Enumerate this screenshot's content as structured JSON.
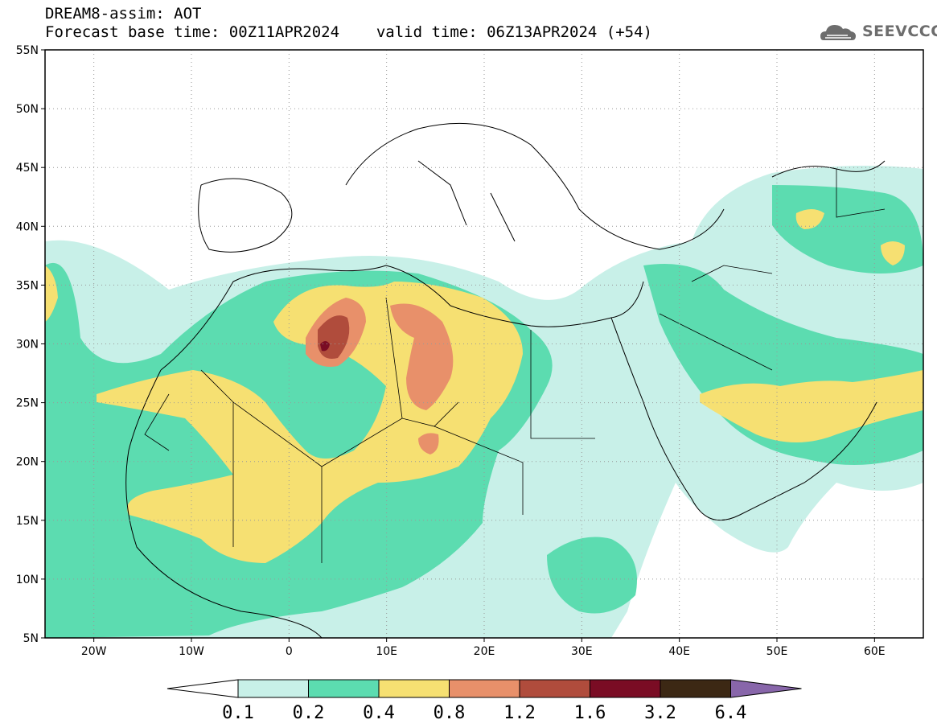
{
  "header": {
    "title_line1": "DREAM8-assim: AOT",
    "base_time_label": "Forecast base time: 00Z11APR2024",
    "valid_time_label": "valid time: 06Z13APR2024 (+54)",
    "logo_text": "SEEVCCC"
  },
  "map": {
    "lon_range": [
      -25,
      65
    ],
    "lat_range": [
      5,
      55
    ],
    "lon_ticks": [
      {
        "value": -20,
        "label": "20W"
      },
      {
        "value": -10,
        "label": "10W"
      },
      {
        "value": 0,
        "label": "0"
      },
      {
        "value": 10,
        "label": "10E"
      },
      {
        "value": 20,
        "label": "20E"
      },
      {
        "value": 30,
        "label": "30E"
      },
      {
        "value": 40,
        "label": "40E"
      },
      {
        "value": 50,
        "label": "50E"
      },
      {
        "value": 60,
        "label": "60E"
      }
    ],
    "lat_ticks": [
      {
        "value": 55,
        "label": "55N"
      },
      {
        "value": 50,
        "label": "50N"
      },
      {
        "value": 45,
        "label": "45N"
      },
      {
        "value": 40,
        "label": "40N"
      },
      {
        "value": 35,
        "label": "35N"
      },
      {
        "value": 30,
        "label": "30N"
      },
      {
        "value": 25,
        "label": "25N"
      },
      {
        "value": 20,
        "label": "20N"
      },
      {
        "value": 15,
        "label": "15N"
      },
      {
        "value": 10,
        "label": "10N"
      },
      {
        "value": 5,
        "label": "5N"
      }
    ],
    "gridlines": "dotted"
  },
  "colorbar": {
    "colors": [
      "#c8f0e8",
      "#5cdcb0",
      "#f6e072",
      "#e8906a",
      "#b04c3c",
      "#7a0c24",
      "#3c2814",
      "#8866aa"
    ],
    "labels": [
      "0.1",
      "0.2",
      "0.4",
      "0.8",
      "1.2",
      "1.6",
      "3.2",
      "6.4"
    ]
  }
}
